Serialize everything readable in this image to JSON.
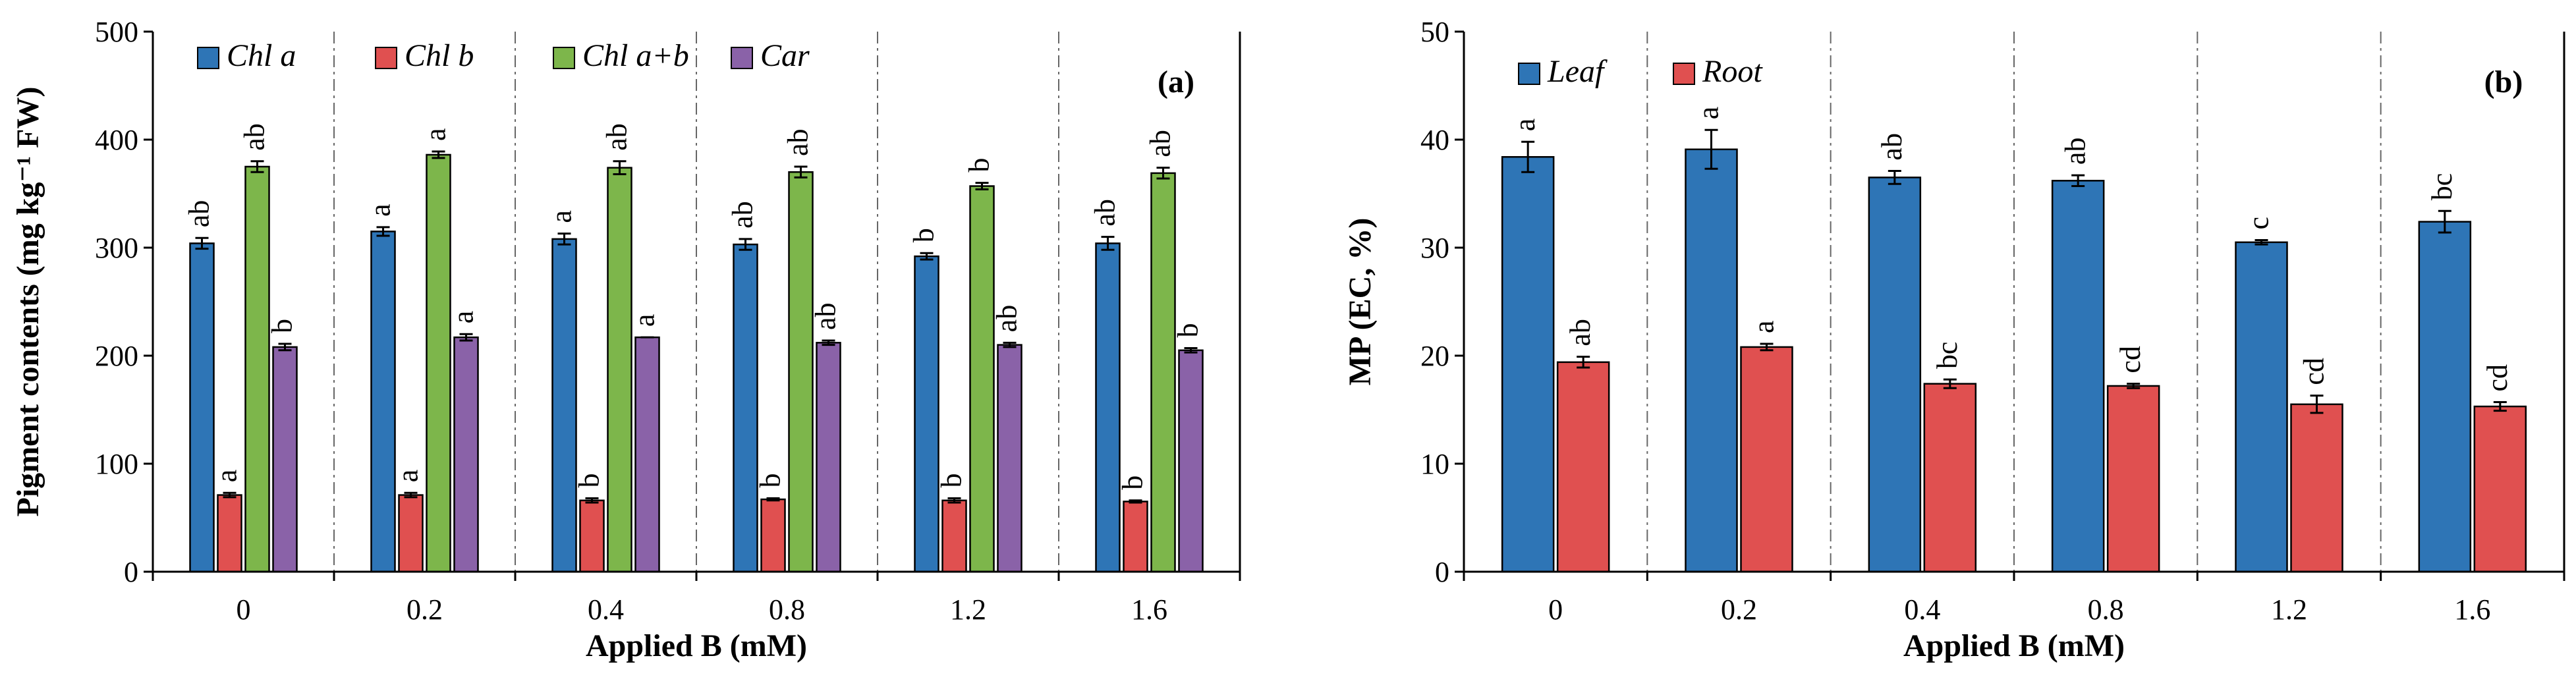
{
  "chart_data": [
    {
      "type": "bar",
      "panel_label": "(a)",
      "xlabel": "Applied B (mM)",
      "ylabel": "Pigment contents (mg kg⁻¹ FW)",
      "ylim": [
        0,
        500
      ],
      "yticks": [
        "0",
        "100",
        "200",
        "300",
        "400",
        "500"
      ],
      "categories": [
        "0",
        "0.2",
        "0.4",
        "0.8",
        "1.2",
        "1.6"
      ],
      "grid": "vertical dash-dot separators between categories",
      "legend_position": "top",
      "series": [
        {
          "name": "Chl a",
          "color": "#2E75B6",
          "values": [
            304,
            315,
            308,
            303,
            292,
            304
          ],
          "errors": [
            5,
            4,
            5,
            5,
            3,
            6
          ],
          "letters": [
            "ab",
            "a",
            "a",
            "ab",
            "b",
            "ab"
          ]
        },
        {
          "name": "Chl b",
          "color": "#E05050",
          "values": [
            71,
            71,
            66,
            67,
            66,
            65
          ],
          "errors": [
            2,
            2,
            2,
            1,
            2,
            1
          ],
          "letters": [
            "a",
            "a",
            "b",
            "b",
            "b",
            "b"
          ]
        },
        {
          "name": "Chl a+b",
          "color": "#7DB64B",
          "values": [
            375,
            386,
            374,
            370,
            357,
            369
          ],
          "errors": [
            5,
            3,
            6,
            5,
            3,
            5
          ],
          "letters": [
            "ab",
            "a",
            "ab",
            "ab",
            "b",
            "ab"
          ]
        },
        {
          "name": "Car",
          "color": "#8A62A8",
          "values": [
            208,
            217,
            217,
            212,
            210,
            205
          ],
          "errors": [
            3,
            3,
            0,
            2,
            2,
            2
          ],
          "letters": [
            "b",
            "a",
            "a",
            "ab",
            "ab",
            "b"
          ]
        }
      ]
    },
    {
      "type": "bar",
      "panel_label": "(b)",
      "xlabel": "Applied B (mM)",
      "ylabel": "MP (EC, %)",
      "ylim": [
        0,
        50
      ],
      "yticks": [
        "0",
        "10",
        "20",
        "30",
        "40",
        "50"
      ],
      "categories": [
        "0",
        "0.2",
        "0.4",
        "0.8",
        "1.2",
        "1.6"
      ],
      "grid": "vertical dash-dot separators between categories",
      "legend_position": "top-left",
      "series": [
        {
          "name": "Leaf",
          "color": "#2E75B6",
          "values": [
            38.4,
            39.1,
            36.5,
            36.2,
            30.5,
            32.4
          ],
          "errors": [
            1.4,
            1.8,
            0.6,
            0.5,
            0.2,
            1.0
          ],
          "letters": [
            "a",
            "a",
            "ab",
            "ab",
            "c",
            "bc"
          ]
        },
        {
          "name": "Root",
          "color": "#E05050",
          "values": [
            19.4,
            20.8,
            17.4,
            17.2,
            15.5,
            15.3
          ],
          "errors": [
            0.5,
            0.3,
            0.4,
            0.2,
            0.8,
            0.4
          ],
          "letters": [
            "ab",
            "a",
            "bc",
            "cd",
            "cd",
            "cd"
          ]
        }
      ]
    }
  ]
}
